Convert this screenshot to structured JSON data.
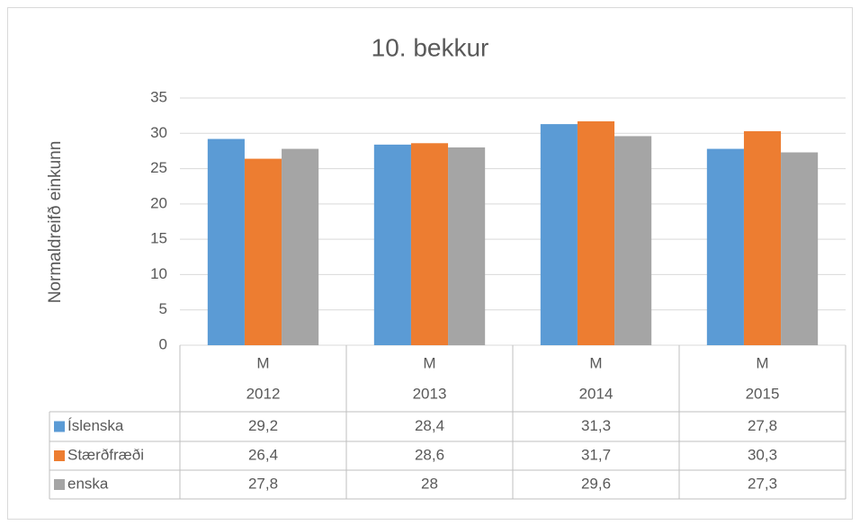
{
  "chart_data": {
    "type": "bar",
    "title": "10. bekkur",
    "y_label": "Normaldreifð einkunn",
    "categories": [
      "2012",
      "2013",
      "2014",
      "2015"
    ],
    "category_sublabels": [
      "M",
      "M",
      "M",
      "M"
    ],
    "series": [
      {
        "name": "Íslenska",
        "color": "#5b9bd5",
        "values": [
          29.2,
          28.4,
          31.3,
          27.8
        ],
        "value_labels": [
          "29,2",
          "28,4",
          "31,3",
          "27,8"
        ]
      },
      {
        "name": "Stærðfræði",
        "color": "#ed7d31",
        "values": [
          26.4,
          28.6,
          31.7,
          30.3
        ],
        "value_labels": [
          "26,4",
          "28,6",
          "31,7",
          "30,3"
        ]
      },
      {
        "name": "enska",
        "color": "#a5a5a5",
        "values": [
          27.8,
          28,
          29.6,
          27.3
        ],
        "value_labels": [
          "27,8",
          "28",
          "29,6",
          "27,3"
        ]
      }
    ],
    "ylim": [
      0,
      35
    ],
    "yticks": [
      0,
      5,
      10,
      15,
      20,
      25,
      30,
      35
    ],
    "grid": true,
    "data_table": true
  }
}
